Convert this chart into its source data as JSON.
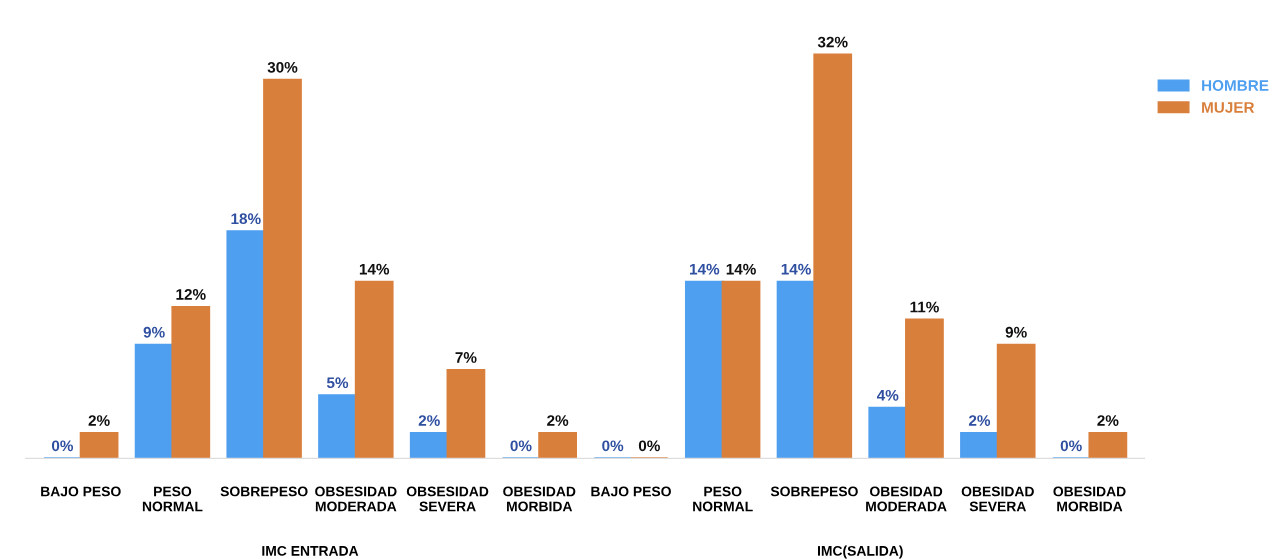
{
  "chart_data": {
    "type": "bar",
    "categories": [
      "BAJO PESO",
      "PESO\nNORMAL",
      "SOBREPESO",
      "OBSESIDAD\nMODERADA",
      "OBSESIDAD\nSEVERA",
      "OBESIDAD\nMORBIDA",
      "BAJO PESO",
      "PESO\nNORMAL",
      "SOBREPESO",
      "OBESIDAD\nMODERADA",
      "OBESIDAD\nSEVERA",
      "OBESIDAD\nMORBIDA"
    ],
    "series": [
      {
        "name": "HOMBRE",
        "color": "#4f9ff0",
        "values": [
          0,
          9,
          18,
          5,
          2,
          0,
          0,
          14,
          14,
          4,
          2,
          0
        ],
        "value_labels": [
          "0%",
          "9%",
          "18%",
          "5%",
          "2%",
          "0%",
          "0%",
          "14%",
          "14%",
          "4%",
          "2%",
          "0%"
        ]
      },
      {
        "name": "MUJER",
        "color": "#d97f3c",
        "values": [
          2,
          12,
          30,
          14,
          7,
          2,
          0,
          14,
          32,
          11,
          9,
          2
        ],
        "value_labels": [
          "2%",
          "12%",
          "30%",
          "14%",
          "7%",
          "2%",
          "0%",
          "14%",
          "32%",
          "11%",
          "9%",
          "2%"
        ]
      }
    ],
    "legend": "top right",
    "annotations": [
      "IMC ENTRADA",
      "IMC(SALIDA)"
    ]
  }
}
